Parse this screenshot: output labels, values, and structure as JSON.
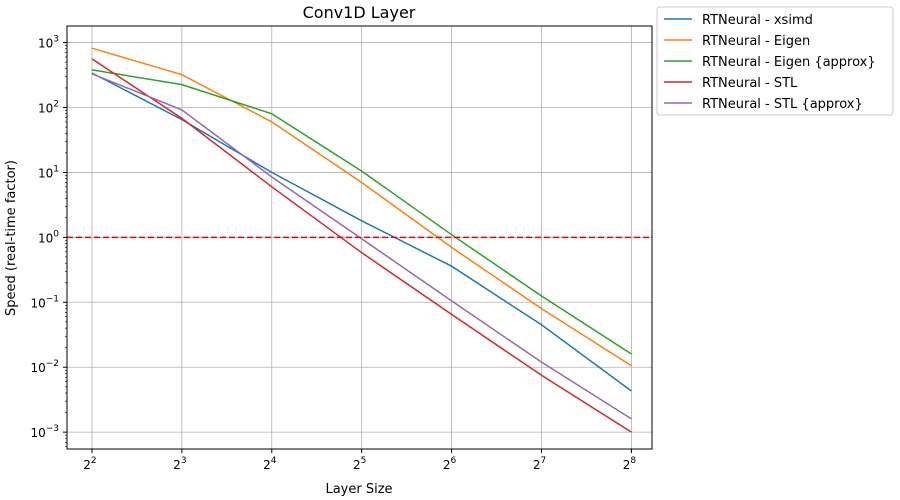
{
  "chart_data": {
    "type": "line",
    "title": "Conv1D Layer",
    "xlabel": "Layer Size",
    "ylabel": "Speed (real-time factor)",
    "x": [
      4,
      8,
      16,
      32,
      64,
      128,
      256
    ],
    "x_scale": "log2",
    "y_scale": "log10",
    "xlim": [
      3.3,
      300
    ],
    "ylim": [
      0.00055,
      1800
    ],
    "x_ticks": [
      {
        "value": 4,
        "base": "2",
        "exp": "2"
      },
      {
        "value": 8,
        "base": "2",
        "exp": "3"
      },
      {
        "value": 16,
        "base": "2",
        "exp": "4"
      },
      {
        "value": 32,
        "base": "2",
        "exp": "5"
      },
      {
        "value": 64,
        "base": "2",
        "exp": "6"
      },
      {
        "value": 128,
        "base": "2",
        "exp": "7"
      },
      {
        "value": 256,
        "base": "2",
        "exp": "8"
      }
    ],
    "y_ticks": [
      {
        "value": 0.001,
        "base": "10",
        "exp": "−3"
      },
      {
        "value": 0.01,
        "base": "10",
        "exp": "−2"
      },
      {
        "value": 0.1,
        "base": "10",
        "exp": "−1"
      },
      {
        "value": 1,
        "base": "10",
        "exp": "0"
      },
      {
        "value": 10,
        "base": "10",
        "exp": "1"
      },
      {
        "value": 100,
        "base": "10",
        "exp": "2"
      },
      {
        "value": 1000,
        "base": "10",
        "exp": "3"
      }
    ],
    "grid": true,
    "legend_position": "outside-top-right",
    "reference_line": {
      "y": 1,
      "color": "#ff0000",
      "style": "dashed"
    },
    "series": [
      {
        "name": "RTNeural - xsimd",
        "color": "#1f77b4",
        "values": [
          340,
          65,
          10,
          1.8,
          0.36,
          0.045,
          0.0043
        ]
      },
      {
        "name": "RTNeural - Eigen",
        "color": "#ff7f0e",
        "values": [
          820,
          320,
          60,
          7,
          0.7,
          0.08,
          0.0105
        ]
      },
      {
        "name": "RTNeural - Eigen {approx}",
        "color": "#2ca02c",
        "values": [
          380,
          225,
          80,
          10.5,
          1.1,
          0.125,
          0.016
        ]
      },
      {
        "name": "RTNeural - STL",
        "color": "#d62728",
        "values": [
          560,
          68,
          6,
          0.58,
          0.065,
          0.0075,
          0.001
        ]
      },
      {
        "name": "RTNeural - STL {approx}",
        "color": "#9467bd",
        "values": [
          330,
          92,
          8.5,
          0.95,
          0.105,
          0.012,
          0.0016
        ]
      }
    ]
  }
}
